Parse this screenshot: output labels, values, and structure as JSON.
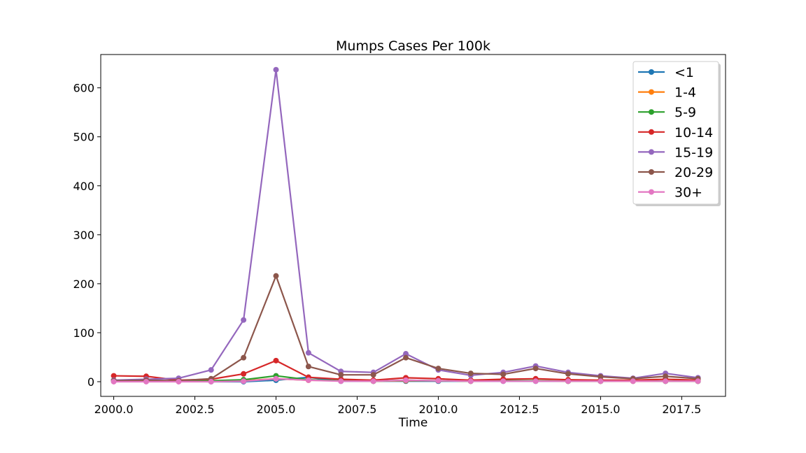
{
  "chart_data": {
    "type": "line",
    "title": "Mumps Cases Per 100k",
    "xlabel": "Time",
    "ylabel": "",
    "xlim": [
      1999.6,
      2018.85
    ],
    "ylim": [
      -30,
      668
    ],
    "x_ticks": [
      2000,
      2002.5,
      2005,
      2007.5,
      2010,
      2012.5,
      2015,
      2017.5
    ],
    "x_tick_labels": [
      "2000.0",
      "2002.5",
      "2005.0",
      "2007.5",
      "2010.0",
      "2012.5",
      "2015.0",
      "2017.5"
    ],
    "y_ticks": [
      0,
      100,
      200,
      300,
      400,
      500,
      600
    ],
    "y_tick_labels": [
      "0",
      "100",
      "200",
      "300",
      "400",
      "500",
      "600"
    ],
    "grid": false,
    "legend_position": "top-right",
    "x": [
      2000,
      2001,
      2002,
      2003,
      2004,
      2005,
      2006,
      2007,
      2008,
      2009,
      2010,
      2011,
      2012,
      2013,
      2014,
      2015,
      2016,
      2017,
      2018
    ],
    "series": [
      {
        "name": "<1",
        "color": "#1f77b4",
        "values": [
          1,
          1,
          1,
          0,
          0,
          3,
          9,
          1,
          1,
          1,
          1,
          1,
          1,
          1,
          1,
          1,
          1,
          1,
          1
        ]
      },
      {
        "name": "1-4",
        "color": "#ff7f0e",
        "values": [
          2,
          2,
          1,
          1,
          2,
          6,
          3,
          2,
          1,
          2,
          2,
          1,
          2,
          2,
          1,
          1,
          1,
          1,
          1
        ]
      },
      {
        "name": "5-9",
        "color": "#2ca02c",
        "values": [
          3,
          2,
          1,
          2,
          4,
          12,
          4,
          2,
          1,
          3,
          2,
          1,
          2,
          2,
          1,
          1,
          2,
          1,
          1
        ]
      },
      {
        "name": "10-14",
        "color": "#d62728",
        "values": [
          12,
          11,
          3,
          5,
          16,
          43,
          9,
          5,
          3,
          8,
          6,
          3,
          5,
          6,
          4,
          3,
          3,
          5,
          3
        ]
      },
      {
        "name": "15-19",
        "color": "#9467bd",
        "values": [
          3,
          5,
          7,
          24,
          126,
          637,
          59,
          21,
          19,
          57,
          24,
          13,
          19,
          32,
          19,
          12,
          7,
          17,
          8
        ]
      },
      {
        "name": "20-29",
        "color": "#8c564b",
        "values": [
          2,
          3,
          2,
          6,
          49,
          216,
          31,
          14,
          14,
          49,
          27,
          17,
          15,
          27,
          16,
          10,
          6,
          11,
          6
        ]
      },
      {
        "name": "30+",
        "color": "#e377c2",
        "values": [
          0,
          0,
          0,
          0,
          1,
          6,
          3,
          1,
          1,
          3,
          2,
          1,
          1,
          1,
          1,
          1,
          1,
          1,
          1
        ]
      }
    ]
  }
}
